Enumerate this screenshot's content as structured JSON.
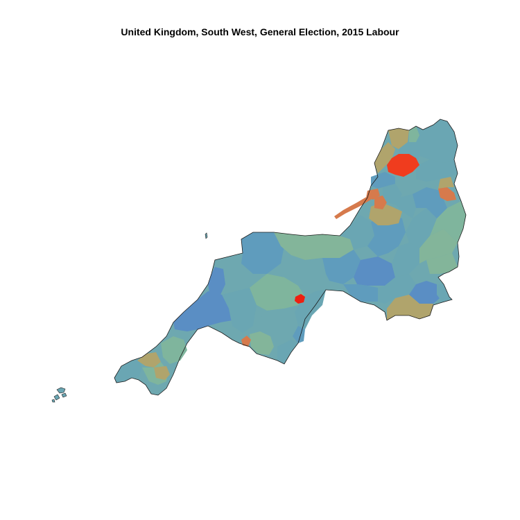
{
  "title": "United Kingdom, South West, General Election, 2015 Labour",
  "colors": {
    "very_high": "#ee1f0f",
    "high": "#f03c1e",
    "mid_high": "#d67a4c",
    "mid": "#b0a46c",
    "mid_low": "#83b59a",
    "low": "#6aa6b3",
    "very_low": "#5a8ec4"
  }
}
